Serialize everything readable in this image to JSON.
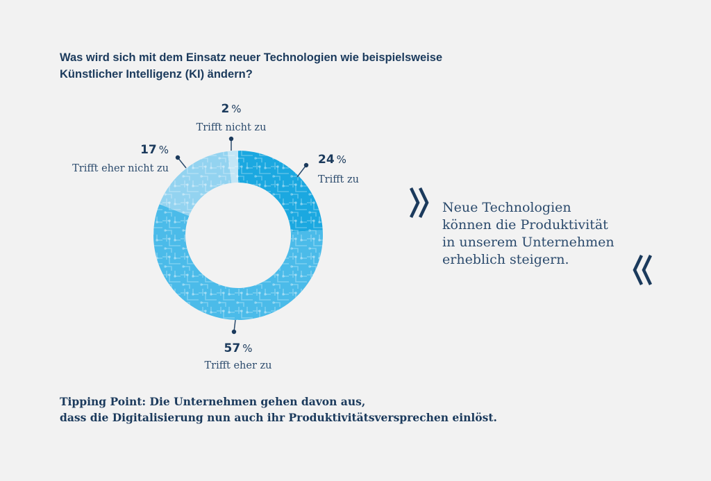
{
  "question": {
    "line1": "Was wird sich mit dem Einsatz neuer Technologien wie beispielsweise",
    "line2": "Künstlicher Intelligenz (KI) ändern?"
  },
  "chart_data": {
    "type": "pie",
    "variant": "donut",
    "slices": [
      {
        "label": "Trifft zu",
        "value": 24,
        "pct_text": "24",
        "color": "#1ba8e0"
      },
      {
        "label": "Trifft eher zu",
        "value": 57,
        "pct_text": "57",
        "color": "#4bbbe9"
      },
      {
        "label": "Trifft eher nicht zu",
        "value": 17,
        "pct_text": "17",
        "color": "#93d3f0"
      },
      {
        "label": "Trifft nicht zu",
        "value": 2,
        "pct_text": "2",
        "color": "#c3e6f6"
      }
    ],
    "percent_sign": "%",
    "start_angle": "12 o'clock",
    "direction": "clockwise"
  },
  "quote": {
    "lines": [
      "Neue Technologien",
      "können die Produktivität",
      "in unserem Unternehmen",
      "erheblich steigern."
    ],
    "open_mark_icon": "double-chevron-right-icon",
    "close_mark_icon": "double-chevron-left-icon",
    "mark_color": "#1b3a5c"
  },
  "tipping_point": {
    "line1": "Tipping Point: Die Unternehmen gehen davon aus,",
    "line2": "dass die Digitalisierung nun auch ihr Produktivitätsversprechen einlöst."
  },
  "colors": {
    "background": "#f2f2f2",
    "text_dark": "#1b3a5c",
    "ring_line": "#2b4a6c"
  }
}
